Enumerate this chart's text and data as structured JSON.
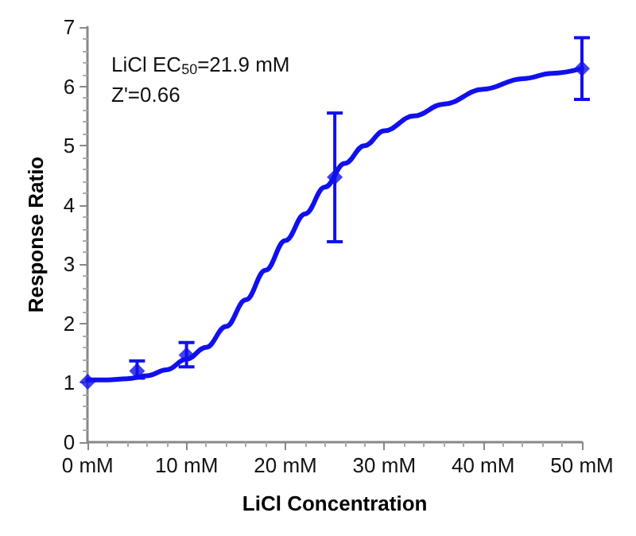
{
  "chart_data": {
    "type": "scatter",
    "xlabel": "LiCl Concentration",
    "ylabel": "Response Ratio",
    "annotations": [
      "LiCl EC$_{50}$=21.9 mM",
      "Z'=0.66"
    ],
    "xlim": [
      0,
      50
    ],
    "xticks": [
      {
        "value": 0,
        "label": "0 mM"
      },
      {
        "value": 10,
        "label": "10 mM"
      },
      {
        "value": 20,
        "label": "20 mM"
      },
      {
        "value": 30,
        "label": "30 mM"
      },
      {
        "value": 40,
        "label": "40 mM"
      },
      {
        "value": 50,
        "label": "50 mM"
      }
    ],
    "ylim": [
      0,
      7
    ],
    "yticks": [
      0,
      1,
      2,
      3,
      4,
      5,
      6,
      7
    ],
    "grid": false,
    "series": [
      {
        "type": "line",
        "marker": "none",
        "line_style": "solid",
        "color": "#1010ee",
        "x": [
          0,
          2,
          4,
          6,
          8,
          10,
          12,
          14,
          16,
          18,
          20,
          22,
          24,
          26,
          28,
          30,
          33,
          36,
          40,
          44,
          47,
          50
        ],
        "values": [
          1.05,
          1.05,
          1.07,
          1.12,
          1.22,
          1.4,
          1.6,
          1.95,
          2.4,
          2.9,
          3.4,
          3.85,
          4.3,
          4.7,
          5.0,
          5.25,
          5.5,
          5.7,
          5.95,
          6.13,
          6.22,
          6.3
        ]
      },
      {
        "marker": "diamond",
        "color": "#1010ee",
        "x": [
          0,
          5,
          10,
          25,
          50
        ],
        "values": [
          1.02,
          1.2,
          1.47,
          4.47,
          6.3
        ],
        "errors": [
          null,
          [
            1.08,
            1.37
          ],
          [
            1.27,
            1.68
          ],
          [
            3.38,
            5.55
          ],
          [
            5.78,
            6.82
          ]
        ]
      }
    ]
  }
}
